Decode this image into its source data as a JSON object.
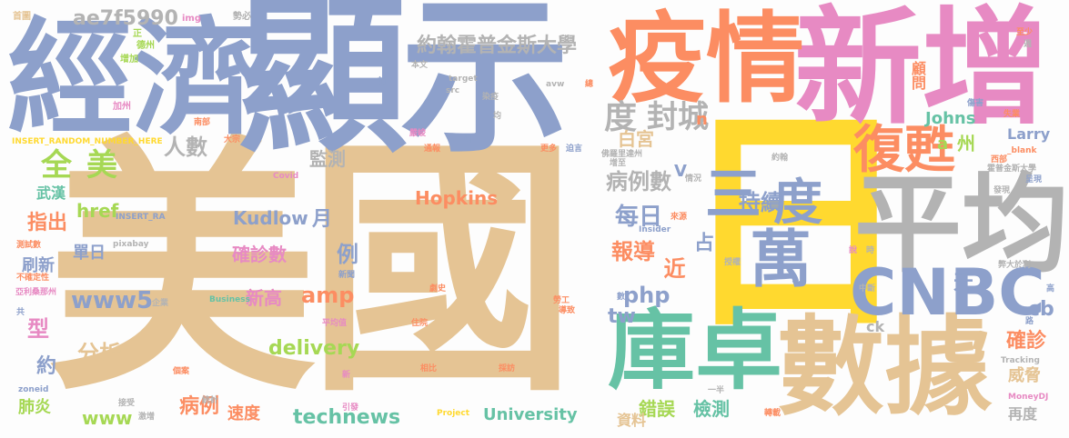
{
  "palette": {
    "tan": "#e5c494",
    "slate": "#8da0cb",
    "orange": "#fc8d62",
    "pink": "#e78ac3",
    "teal": "#66c2a5",
    "grey": "#b3b3b3",
    "lime": "#a6d854",
    "yellow": "#ffd92f"
  },
  "words": [
    {
      "text": "美國",
      "color": "tan"
    },
    {
      "text": "日",
      "color": "yellow"
    },
    {
      "text": "顯示",
      "color": "slate"
    },
    {
      "text": "經濟",
      "color": "slate"
    },
    {
      "text": "新增",
      "color": "pink"
    },
    {
      "text": "疫情",
      "color": "orange"
    },
    {
      "text": "平均",
      "color": "grey"
    },
    {
      "text": "數據",
      "color": "tan"
    },
    {
      "text": "庫卓",
      "color": "teal"
    },
    {
      "text": "CNBC",
      "color": "slate"
    },
    {
      "text": "復甦",
      "color": "orange"
    },
    {
      "text": "萬",
      "color": "slate"
    },
    {
      "text": "度",
      "color": "slate"
    },
    {
      "text": "三",
      "color": "slate"
    },
    {
      "text": "持續",
      "color": "slate"
    },
    {
      "text": "約翰霍普金斯大學",
      "color": "grey"
    },
    {
      "text": "度",
      "color": "grey"
    },
    {
      "text": "封城",
      "color": "grey"
    },
    {
      "text": "全",
      "color": "lime"
    },
    {
      "text": "美",
      "color": "lime"
    },
    {
      "text": "ae7f5990",
      "color": "grey"
    },
    {
      "text": "人數",
      "color": "grey"
    },
    {
      "text": "監測",
      "color": "grey"
    },
    {
      "text": "病例數",
      "color": "grey"
    },
    {
      "text": "白宮",
      "color": "tan"
    },
    {
      "text": "每日",
      "color": "slate"
    },
    {
      "text": "報導",
      "color": "orange"
    },
    {
      "text": "近",
      "color": "orange"
    },
    {
      "text": "占",
      "color": "slate"
    },
    {
      "text": "Hopkins",
      "color": "orange"
    },
    {
      "text": "Kudlow",
      "color": "slate"
    },
    {
      "text": "href",
      "color": "lime"
    },
    {
      "text": "月",
      "color": "slate"
    },
    {
      "text": "指出",
      "color": "orange"
    },
    {
      "text": "武漢",
      "color": "teal"
    },
    {
      "text": "單日",
      "color": "slate"
    },
    {
      "text": "確診數",
      "color": "pink"
    },
    {
      "text": "例",
      "color": "slate"
    },
    {
      "text": "刷新",
      "color": "slate"
    },
    {
      "text": "www5",
      "color": "slate"
    },
    {
      "text": "新高",
      "color": "pink"
    },
    {
      "text": "amp",
      "color": "orange"
    },
    {
      "text": "php",
      "color": "slate"
    },
    {
      "text": "tw",
      "color": "slate"
    },
    {
      "text": "型",
      "color": "pink"
    },
    {
      "text": "分析",
      "color": "tan"
    },
    {
      "text": "delivery",
      "color": "lime"
    },
    {
      "text": "約",
      "color": "slate"
    },
    {
      "text": "病例",
      "color": "orange"
    },
    {
      "text": "速度",
      "color": "orange"
    },
    {
      "text": "www",
      "color": "lime"
    },
    {
      "text": "technews",
      "color": "teal"
    },
    {
      "text": "University",
      "color": "teal"
    },
    {
      "text": "錯誤",
      "color": "lime"
    },
    {
      "text": "資料",
      "color": "tan"
    },
    {
      "text": "檢測",
      "color": "teal"
    },
    {
      "text": "肺炎",
      "color": "lime"
    },
    {
      "text": "cb",
      "color": "slate"
    },
    {
      "text": "確診",
      "color": "orange"
    },
    {
      "text": "威脅",
      "color": "tan"
    },
    {
      "text": "再度",
      "color": "grey"
    },
    {
      "text": "Larry",
      "color": "slate"
    },
    {
      "text": "Johns",
      "color": "teal"
    },
    {
      "text": "顧問",
      "color": "orange"
    },
    {
      "text": "天",
      "color": "slate"
    },
    {
      "text": "州",
      "color": "lime"
    },
    {
      "text": "a",
      "color": "lime"
    },
    {
      "text": "n",
      "color": "orange"
    },
    {
      "text": "V",
      "color": "slate"
    },
    {
      "text": "ck",
      "color": "grey"
    },
    {
      "text": "首圖",
      "color": "tan"
    },
    {
      "text": "正",
      "color": "lime"
    },
    {
      "text": "德州",
      "color": "lime"
    },
    {
      "text": "增加",
      "color": "lime"
    },
    {
      "text": "加州",
      "color": "pink"
    },
    {
      "text": "img",
      "color": "pink"
    },
    {
      "text": "勢必",
      "color": "grey"
    },
    {
      "text": "本文",
      "color": "grey"
    },
    {
      "text": "target",
      "color": "grey"
    },
    {
      "text": "src",
      "color": "grey"
    },
    {
      "text": "avw",
      "color": "grey"
    },
    {
      "text": "染疫",
      "color": "grey"
    },
    {
      "text": "前",
      "color": "slate"
    },
    {
      "text": "均",
      "color": "grey"
    },
    {
      "text": "總",
      "color": "orange"
    },
    {
      "text": "INSERT_RANDOM_NUMBER_HERE",
      "color": "yellow"
    },
    {
      "text": "南部",
      "color": "orange"
    },
    {
      "text": "大宗",
      "color": "orange"
    },
    {
      "text": "嚴峻",
      "color": "pink"
    },
    {
      "text": "通報",
      "color": "orange"
    },
    {
      "text": "國",
      "color": "slate"
    },
    {
      "text": "更多",
      "color": "orange"
    },
    {
      "text": "迫言",
      "color": "slate"
    },
    {
      "text": "Covid",
      "color": "pink"
    },
    {
      "text": "超過",
      "color": "tan"
    },
    {
      "text": "INSERT_RA",
      "color": "slate"
    },
    {
      "text": "pixabay",
      "color": "grey"
    },
    {
      "text": "測試數",
      "color": "orange"
    },
    {
      "text": "不確定性",
      "color": "orange"
    },
    {
      "text": "亞利桑那州",
      "color": "pink"
    },
    {
      "text": "共",
      "color": "slate"
    },
    {
      "text": "新聞",
      "color": "slate"
    },
    {
      "text": "Business",
      "color": "teal"
    },
    {
      "text": "企業",
      "color": "grey"
    },
    {
      "text": "劇史",
      "color": "orange"
    },
    {
      "text": "住院",
      "color": "orange"
    },
    {
      "text": "平均值",
      "color": "pink"
    },
    {
      "text": "個案",
      "color": "orange"
    },
    {
      "text": "新",
      "color": "pink"
    },
    {
      "text": "zoneid",
      "color": "slate"
    },
    {
      "text": "接受",
      "color": "grey"
    },
    {
      "text": "統計",
      "color": "grey"
    },
    {
      "text": "激增",
      "color": "grey"
    },
    {
      "text": "引發",
      "color": "pink"
    },
    {
      "text": "Project",
      "color": "yellow"
    },
    {
      "text": "相比",
      "color": "orange"
    },
    {
      "text": "採訪",
      "color": "orange"
    },
    {
      "text": "勞工",
      "color": "orange"
    },
    {
      "text": "導致",
      "color": "orange"
    },
    {
      "text": "數",
      "color": "slate"
    },
    {
      "text": "Insider",
      "color": "slate"
    },
    {
      "text": "佛羅里達州",
      "color": "grey"
    },
    {
      "text": "情況",
      "color": "grey"
    },
    {
      "text": "來源",
      "color": "orange"
    },
    {
      "text": "增至",
      "color": "grey"
    },
    {
      "text": "約翰",
      "color": "grey"
    },
    {
      "text": "授權",
      "color": "grey"
    },
    {
      "text": "一半",
      "color": "grey"
    },
    {
      "text": "轉載",
      "color": "orange"
    },
    {
      "text": "至少",
      "color": "orange"
    },
    {
      "text": "週",
      "color": "grey"
    },
    {
      "text": "傷害",
      "color": "slate"
    },
    {
      "text": "失業",
      "color": "orange"
    },
    {
      "text": "_blank",
      "color": "orange"
    },
    {
      "text": "西部",
      "color": "orange"
    },
    {
      "text": "霍普金斯大學",
      "color": "grey"
    },
    {
      "text": "呈現",
      "color": "slate"
    },
    {
      "text": "發現",
      "color": "grey"
    },
    {
      "text": "說",
      "color": "pink"
    },
    {
      "text": "時",
      "color": "grey"
    },
    {
      "text": "弊大於利",
      "color": "grey"
    },
    {
      "text": "中斷",
      "color": "grey"
    },
    {
      "text": "高",
      "color": "slate"
    },
    {
      "text": "路",
      "color": "slate"
    },
    {
      "text": "Tracking",
      "color": "grey"
    },
    {
      "text": "MoneyDJ",
      "color": "pink"
    }
  ]
}
